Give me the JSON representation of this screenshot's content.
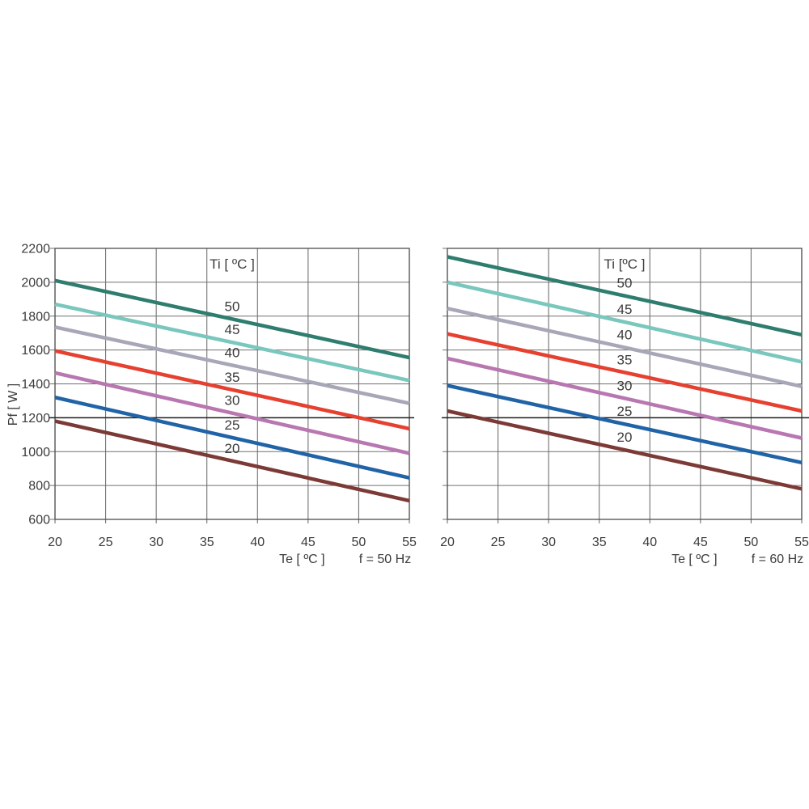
{
  "page": {
    "background": "#ffffff"
  },
  "styles": {
    "grid_color": "#707070",
    "border_color": "#4f4f4f",
    "dark_line_color": "#1c1c1c",
    "text_color": "#3b3b3b"
  },
  "chart_data": [
    {
      "type": "line",
      "title": "",
      "xlabel": "Te  [ ºC ]",
      "ylabel": "Pf  [ W ]",
      "freq_label": "f = 50 Hz",
      "legend_title": "Ti  [ ºC ]",
      "xlim": [
        20,
        55
      ],
      "ylim": [
        600,
        2200
      ],
      "x_ticks": [
        20,
        25,
        30,
        35,
        40,
        45,
        50,
        55
      ],
      "y_ticks": [
        600,
        800,
        1000,
        1200,
        1400,
        1600,
        1800,
        2000,
        2200
      ],
      "show_y_tick_labels": true,
      "grid": true,
      "x": [
        20,
        55
      ],
      "series_label_x": 37.5,
      "series": [
        {
          "name": "50",
          "values": [
            2010,
            1555
          ],
          "color": "#2E7D6F"
        },
        {
          "name": "45",
          "values": [
            1870,
            1420
          ],
          "color": "#79C7BD"
        },
        {
          "name": "40",
          "values": [
            1735,
            1285
          ],
          "color": "#A7A7B7"
        },
        {
          "name": "35",
          "values": [
            1595,
            1135
          ],
          "color": "#E64030"
        },
        {
          "name": "30",
          "values": [
            1465,
            990
          ],
          "color": "#B877B1"
        },
        {
          "name": "25",
          "values": [
            1320,
            845
          ],
          "color": "#2063A6"
        },
        {
          "name": "20",
          "values": [
            1180,
            710
          ],
          "color": "#7C3A37"
        }
      ]
    },
    {
      "type": "line",
      "title": "",
      "xlabel": "Te  [ ºC ]",
      "ylabel": "",
      "freq_label": "f = 60 Hz",
      "legend_title": "Ti [ºC ]",
      "xlim": [
        20,
        55
      ],
      "ylim": [
        600,
        2200
      ],
      "x_ticks": [
        20,
        25,
        30,
        35,
        40,
        45,
        50,
        55
      ],
      "y_ticks": [
        600,
        800,
        1000,
        1200,
        1400,
        1600,
        1800,
        2000,
        2200
      ],
      "show_y_tick_labels": false,
      "grid": true,
      "x": [
        20,
        55
      ],
      "series_label_x": 37.5,
      "series": [
        {
          "name": "50",
          "values": [
            2150,
            1690
          ],
          "color": "#2E7D6F"
        },
        {
          "name": "45",
          "values": [
            2000,
            1530
          ],
          "color": "#79C7BD"
        },
        {
          "name": "40",
          "values": [
            1845,
            1385
          ],
          "color": "#A7A7B7"
        },
        {
          "name": "35",
          "values": [
            1695,
            1240
          ],
          "color": "#E64030"
        },
        {
          "name": "30",
          "values": [
            1550,
            1080
          ],
          "color": "#B877B1"
        },
        {
          "name": "25",
          "values": [
            1390,
            935
          ],
          "color": "#2063A6"
        },
        {
          "name": "20",
          "values": [
            1240,
            780
          ],
          "color": "#7C3A37"
        }
      ]
    }
  ]
}
